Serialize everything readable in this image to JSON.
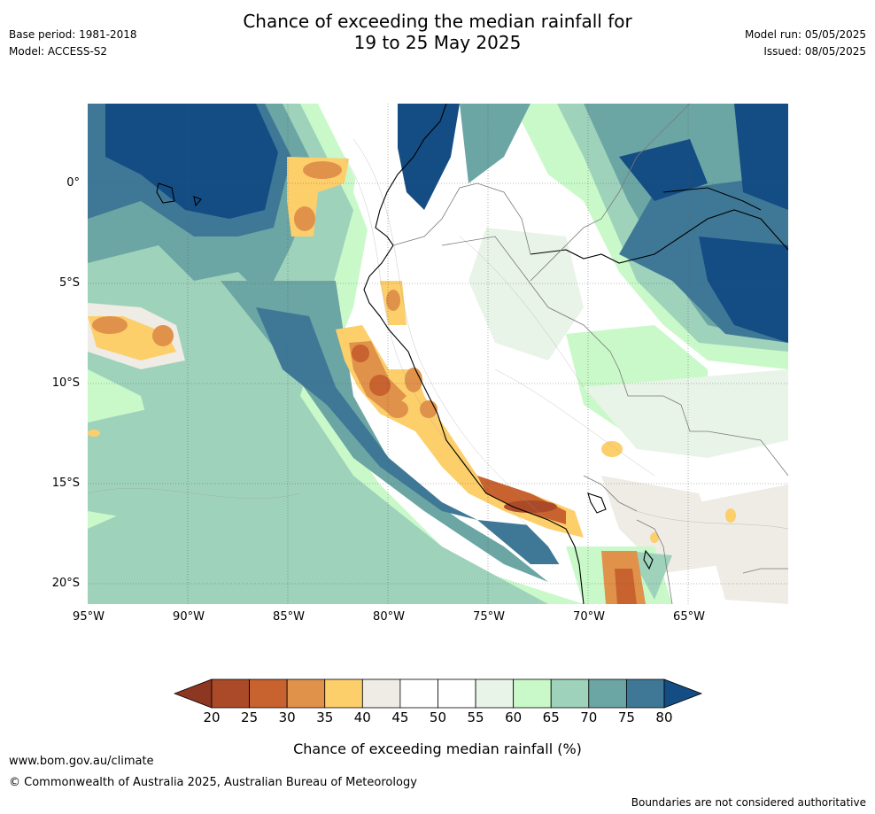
{
  "header": {
    "base_period": "Base period: 1981-2018",
    "model": "Model: ACCESS-S2",
    "title_line1": "Chance of exceeding the median rainfall for",
    "title_line2": "19 to 25 May 2025",
    "model_run": "Model run: 05/05/2025",
    "issued": "Issued: 08/05/2025"
  },
  "map": {
    "lat_labels": [
      "0°",
      "5°S",
      "10°S",
      "15°S",
      "20°S"
    ],
    "lon_labels": [
      "95°W",
      "90°W",
      "85°W",
      "80°W",
      "75°W",
      "70°W",
      "65°W"
    ]
  },
  "colorbar": {
    "ticks": [
      "20",
      "25",
      "30",
      "35",
      "40",
      "45",
      "50",
      "55",
      "60",
      "65",
      "70",
      "75",
      "80"
    ],
    "colors": [
      "#ab4a29",
      "#c8622f",
      "#e0924a",
      "#fdcf6b",
      "#efebe5",
      "#ffffff",
      "#ffffff",
      "#e8f4e8",
      "#c9f9c9",
      "#9ed2bb",
      "#6ca6a4",
      "#3f7896"
    ],
    "low_color": "#8d3621",
    "high_color": "#134d84",
    "label": "Chance of exceeding median rainfall (%)"
  },
  "footer": {
    "website": "www.bom.gov.au/climate",
    "copyright": "© Commonwealth of Australia 2025, Australian Bureau of Meteorology",
    "disclaimer": "Boundaries are not considered authoritative"
  }
}
